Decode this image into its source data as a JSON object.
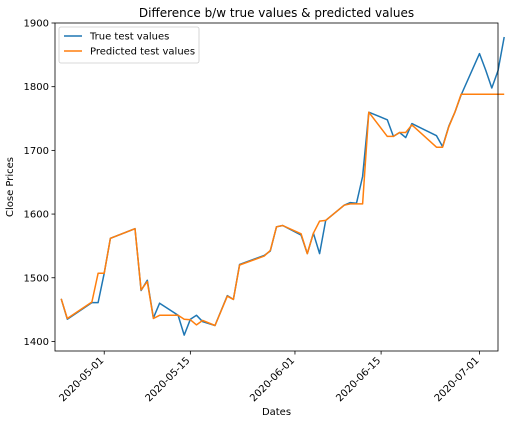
{
  "chart_data": {
    "type": "line",
    "title": "Difference b/w true values & predicted values",
    "xlabel": "Dates",
    "ylabel": "Close Prices",
    "ylim": [
      1385,
      1900
    ],
    "xlim": [
      "2020-04-23",
      "2020-07-04"
    ],
    "y_ticks": [
      1400,
      1500,
      1600,
      1700,
      1800,
      1900
    ],
    "x_ticks": [
      "2020-05-01",
      "2020-05-15",
      "2020-06-01",
      "2020-06-15",
      "2020-07-01"
    ],
    "grid": false,
    "legend": "top-left",
    "series": [
      {
        "name": "True test values",
        "color": "#1f77b4",
        "points": [
          [
            "2020-04-24",
            1467
          ],
          [
            "2020-04-25",
            1435
          ],
          [
            "2020-04-29",
            1461
          ],
          [
            "2020-04-30",
            1461
          ],
          [
            "2020-05-01",
            1507
          ],
          [
            "2020-05-02",
            1562
          ],
          [
            "2020-05-06",
            1577
          ],
          [
            "2020-05-07",
            1480
          ],
          [
            "2020-05-08",
            1496
          ],
          [
            "2020-05-09",
            1437
          ],
          [
            "2020-05-10",
            1460
          ],
          [
            "2020-05-13",
            1441
          ],
          [
            "2020-05-14",
            1410
          ],
          [
            "2020-05-15",
            1435
          ],
          [
            "2020-05-16",
            1441
          ],
          [
            "2020-05-17",
            1431
          ],
          [
            "2020-05-19",
            1425
          ],
          [
            "2020-05-21",
            1472
          ],
          [
            "2020-05-22",
            1466
          ],
          [
            "2020-05-23",
            1521
          ],
          [
            "2020-05-27",
            1535
          ],
          [
            "2020-05-28",
            1542
          ],
          [
            "2020-05-29",
            1580
          ],
          [
            "2020-05-30",
            1582
          ],
          [
            "2020-06-02",
            1567
          ],
          [
            "2020-06-03",
            1538
          ],
          [
            "2020-06-04",
            1570
          ],
          [
            "2020-06-05",
            1538
          ],
          [
            "2020-06-06",
            1590
          ],
          [
            "2020-06-09",
            1614
          ],
          [
            "2020-06-10",
            1618
          ],
          [
            "2020-06-11",
            1617
          ],
          [
            "2020-06-12",
            1659
          ],
          [
            "2020-06-13",
            1760
          ],
          [
            "2020-06-16",
            1748
          ],
          [
            "2020-06-17",
            1722
          ],
          [
            "2020-06-18",
            1728
          ],
          [
            "2020-06-19",
            1720
          ],
          [
            "2020-06-20",
            1742
          ],
          [
            "2020-06-24",
            1723
          ],
          [
            "2020-06-25",
            1706
          ],
          [
            "2020-06-26",
            1738
          ],
          [
            "2020-06-27",
            1760
          ],
          [
            "2020-06-28",
            1787
          ],
          [
            "2020-07-01",
            1852
          ],
          [
            "2020-07-02",
            1826
          ],
          [
            "2020-07-03",
            1798
          ],
          [
            "2020-07-04",
            1825
          ],
          [
            "2020-07-05",
            1878
          ]
        ]
      },
      {
        "name": "Predicted test values",
        "color": "#ff7f0e",
        "points": [
          [
            "2020-04-24",
            1467
          ],
          [
            "2020-04-25",
            1436
          ],
          [
            "2020-04-29",
            1462
          ],
          [
            "2020-04-30",
            1507
          ],
          [
            "2020-05-01",
            1507
          ],
          [
            "2020-05-02",
            1562
          ],
          [
            "2020-05-06",
            1577
          ],
          [
            "2020-05-07",
            1481
          ],
          [
            "2020-05-08",
            1494
          ],
          [
            "2020-05-09",
            1436
          ],
          [
            "2020-05-10",
            1441
          ],
          [
            "2020-05-13",
            1441
          ],
          [
            "2020-05-14",
            1435
          ],
          [
            "2020-05-15",
            1434
          ],
          [
            "2020-05-16",
            1426
          ],
          [
            "2020-05-17",
            1433
          ],
          [
            "2020-05-19",
            1425
          ],
          [
            "2020-05-21",
            1471
          ],
          [
            "2020-05-22",
            1466
          ],
          [
            "2020-05-23",
            1520
          ],
          [
            "2020-05-27",
            1534
          ],
          [
            "2020-05-28",
            1543
          ],
          [
            "2020-05-29",
            1580
          ],
          [
            "2020-05-30",
            1582
          ],
          [
            "2020-06-02",
            1569
          ],
          [
            "2020-06-03",
            1538
          ],
          [
            "2020-06-04",
            1570
          ],
          [
            "2020-06-05",
            1589
          ],
          [
            "2020-06-06",
            1590
          ],
          [
            "2020-06-09",
            1614
          ],
          [
            "2020-06-10",
            1616
          ],
          [
            "2020-06-11",
            1616
          ],
          [
            "2020-06-12",
            1616
          ],
          [
            "2020-06-13",
            1760
          ],
          [
            "2020-06-16",
            1722
          ],
          [
            "2020-06-17",
            1722
          ],
          [
            "2020-06-18",
            1728
          ],
          [
            "2020-06-19",
            1728
          ],
          [
            "2020-06-20",
            1740
          ],
          [
            "2020-06-24",
            1705
          ],
          [
            "2020-06-25",
            1705
          ],
          [
            "2020-06-26",
            1737
          ],
          [
            "2020-06-27",
            1760
          ],
          [
            "2020-06-28",
            1788
          ],
          [
            "2020-07-01",
            1788
          ],
          [
            "2020-07-02",
            1788
          ],
          [
            "2020-07-03",
            1788
          ],
          [
            "2020-07-04",
            1788
          ],
          [
            "2020-07-05",
            1788
          ]
        ]
      }
    ]
  }
}
